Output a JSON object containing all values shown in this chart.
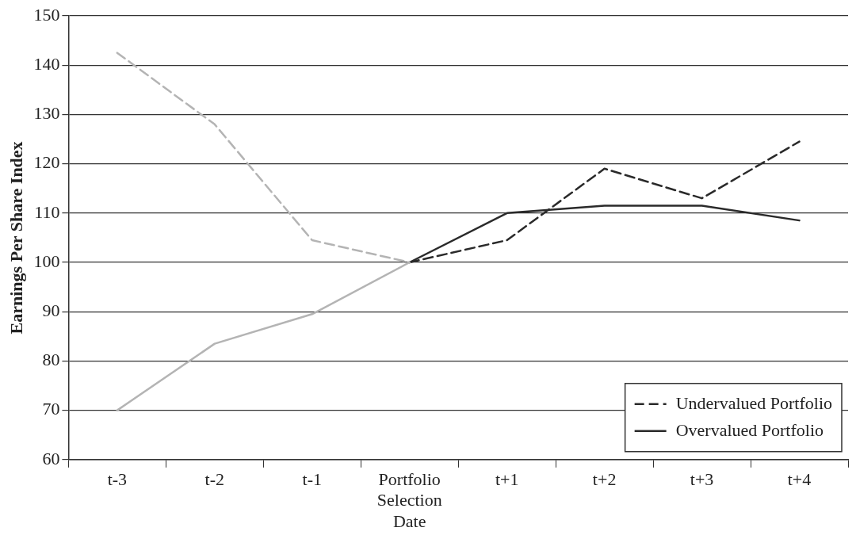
{
  "chart_data": {
    "type": "line",
    "ylabel": "Earnings Per Share Index",
    "categories": [
      "t-3",
      "t-2",
      "t-1",
      "Portfolio Selection Date",
      "t+1",
      "t+2",
      "t+3",
      "t+4"
    ],
    "series": [
      {
        "color": "#b4b4b4",
        "line_style": "dashed",
        "values": [
          142.5,
          128,
          104.5,
          100,
          null,
          null,
          null,
          null
        ]
      },
      {
        "color": "#b4b4b4",
        "line_style": "solid",
        "values": [
          70,
          83.5,
          89.5,
          100,
          null,
          null,
          null,
          null
        ]
      },
      {
        "name": "Undervalued Portfolio",
        "color": "#2a2a2a",
        "line_style": "dashed",
        "values": [
          null,
          null,
          null,
          100,
          104.5,
          119,
          113,
          124.5
        ]
      },
      {
        "name": "Overvalued Portfolio",
        "color": "#2a2a2a",
        "line_style": "solid",
        "values": [
          null,
          null,
          null,
          100,
          110,
          111.5,
          111.5,
          108.5
        ]
      }
    ],
    "ylim": [
      60,
      150
    ],
    "yticks": [
      60,
      70,
      80,
      90,
      100,
      110,
      120,
      130,
      140,
      150
    ],
    "grid": "y",
    "legend": "bottom right",
    "marker": "none"
  }
}
